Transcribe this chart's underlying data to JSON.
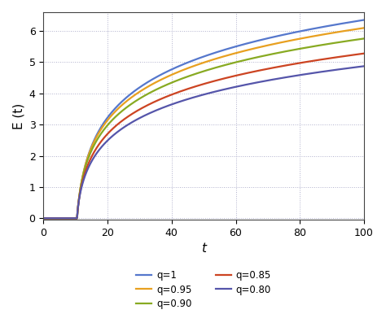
{
  "title": "",
  "xlabel": "t",
  "ylabel": "E (t)",
  "xlim": [
    0,
    100
  ],
  "ylim": [
    -0.05,
    6.6
  ],
  "xticks": [
    0,
    20,
    40,
    60,
    80,
    100
  ],
  "yticks": [
    0,
    1,
    2,
    3,
    4,
    5,
    6
  ],
  "grid_color": "#b0b0cc",
  "bg_color": "#ffffff",
  "series": [
    {
      "q": 1.0,
      "color": "#5577cc",
      "label": "q=1",
      "A": 6.35,
      "k": 0.018,
      "t0": 10.5
    },
    {
      "q": 0.95,
      "color": "#e8a020",
      "label": "q=0.95",
      "A": 6.35,
      "k": 0.018,
      "t0": 10.5
    },
    {
      "q": 0.9,
      "color": "#88aa22",
      "label": "q=0.90",
      "A": 6.35,
      "k": 0.018,
      "t0": 10.5
    },
    {
      "q": 0.85,
      "color": "#cc4422",
      "label": "q=0.85",
      "A": 6.35,
      "k": 0.018,
      "t0": 10.5
    },
    {
      "q": 0.8,
      "color": "#5555aa",
      "label": "q=0.80",
      "A": 6.35,
      "k": 0.018,
      "t0": 10.5
    }
  ],
  "t_start": 0.0,
  "t_end": 100,
  "n_points": 2000,
  "lw": 1.6,
  "legend_fontsize": 8.5,
  "axis_label_fontsize": 11,
  "tick_fontsize": 9
}
